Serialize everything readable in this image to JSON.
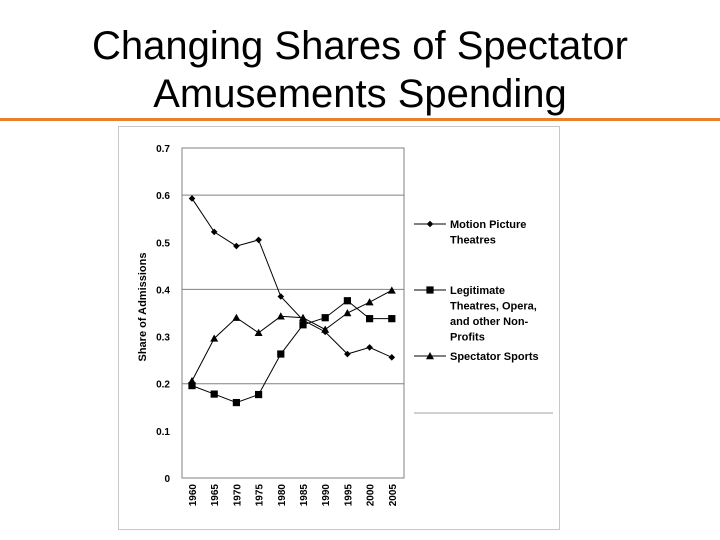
{
  "slide": {
    "title_line1": "Changing Shares of Spectator",
    "title_line2": "Amusements Spending",
    "accent_color": "#e8822a"
  },
  "chart_data": {
    "type": "line",
    "title": "",
    "xlabel": "",
    "ylabel": "Share of Admissions",
    "x": [
      "1960",
      "1965",
      "1970",
      "1975",
      "1980",
      "1985",
      "1990",
      "1995",
      "2000",
      "2005"
    ],
    "ylim": [
      0,
      0.7
    ],
    "yticks": [
      "0",
      "0.1",
      "0.2",
      "0.3",
      "0.4",
      "0.5",
      "0.6",
      "0.7"
    ],
    "grid": "horizontal at 0.2, 0.4, 0.6",
    "legend_placement": "right",
    "series": [
      {
        "name": "Motion Picture Theatres",
        "marker": "diamond",
        "values": [
          0.593,
          0.522,
          0.492,
          0.505,
          0.385,
          0.335,
          0.31,
          0.263,
          0.277,
          0.256
        ]
      },
      {
        "name": "Legitimate Theatres, Opera, and other Non-Profits",
        "marker": "square",
        "values": [
          0.196,
          0.178,
          0.16,
          0.177,
          0.263,
          0.325,
          0.34,
          0.376,
          0.338,
          0.338
        ]
      },
      {
        "name": "Spectator Sports",
        "marker": "triangle",
        "values": [
          0.206,
          0.296,
          0.34,
          0.308,
          0.343,
          0.34,
          0.315,
          0.35,
          0.373,
          0.398
        ]
      }
    ],
    "legend_lines": [
      [
        "Motion Picture",
        "Theatres"
      ],
      [
        "Legitimate",
        "Theatres, Opera,",
        "and other Non-",
        "Profits"
      ],
      [
        "Spectator Sports"
      ]
    ]
  }
}
